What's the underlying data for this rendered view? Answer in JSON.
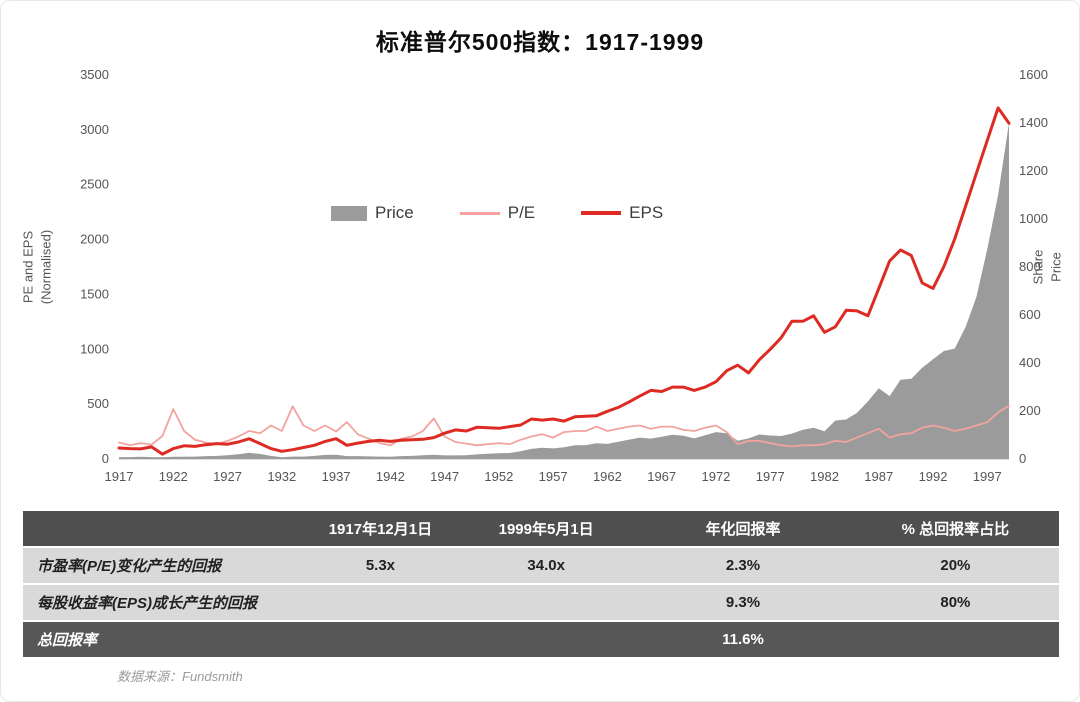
{
  "title": "标准普尔500指数：1917-1999",
  "footer": {
    "source": "数据来源：Fundsmith"
  },
  "colors": {
    "price_area": "#9b9b9b",
    "pe_line": "#f2a39e",
    "eps_line": "#dd2a22",
    "table_header_bg": "#4f4f4f",
    "table_row_bg": "#d9d9d9",
    "table_total_bg": "#575757",
    "highlight_red": "#d62222"
  },
  "chart_data": {
    "type": "area",
    "title": "标准普尔500指数：1917-1999",
    "left_axis": {
      "label": "PE and EPS\n(Normalised)",
      "min": 0,
      "max": 3500,
      "ticks": [
        0,
        500,
        1000,
        1500,
        2000,
        2500,
        3000,
        3500
      ]
    },
    "right_axis": {
      "label": "Share Price",
      "min": 0,
      "max": 1600,
      "ticks": [
        0,
        200,
        400,
        600,
        800,
        1000,
        1200,
        1400,
        1600
      ]
    },
    "x_ticks": [
      1917,
      1922,
      1927,
      1932,
      1937,
      1942,
      1947,
      1952,
      1957,
      1962,
      1967,
      1972,
      1977,
      1982,
      1987,
      1992,
      1997
    ],
    "x": [
      1917,
      1918,
      1919,
      1920,
      1921,
      1922,
      1923,
      1924,
      1925,
      1926,
      1927,
      1928,
      1929,
      1930,
      1931,
      1932,
      1933,
      1934,
      1935,
      1936,
      1937,
      1938,
      1939,
      1940,
      1941,
      1942,
      1943,
      1944,
      1945,
      1946,
      1947,
      1948,
      1949,
      1950,
      1951,
      1952,
      1953,
      1954,
      1955,
      1956,
      1957,
      1958,
      1959,
      1960,
      1961,
      1962,
      1963,
      1964,
      1965,
      1966,
      1967,
      1968,
      1969,
      1970,
      1971,
      1972,
      1973,
      1974,
      1975,
      1976,
      1977,
      1978,
      1979,
      1980,
      1981,
      1982,
      1983,
      1984,
      1985,
      1986,
      1987,
      1988,
      1989,
      1990,
      1991,
      1992,
      1993,
      1994,
      1995,
      1996,
      1997,
      1998,
      1999
    ],
    "legend": [
      "Price",
      "P/E",
      "EPS"
    ],
    "series": [
      {
        "name": "Price",
        "type": "area",
        "axis": "right",
        "color": "#9b9b9b",
        "values": [
          8,
          8,
          9,
          8,
          7,
          9,
          9,
          10,
          12,
          13,
          16,
          20,
          26,
          21,
          13,
          7,
          10,
          10,
          13,
          17,
          18,
          12,
          12,
          11,
          10,
          9,
          12,
          13,
          16,
          18,
          15,
          15,
          16,
          19,
          22,
          24,
          25,
          32,
          42,
          47,
          44,
          49,
          57,
          58,
          66,
          63,
          72,
          81,
          89,
          85,
          93,
          101,
          97,
          86,
          99,
          112,
          107,
          76,
          86,
          102,
          98,
          96,
          106,
          122,
          130,
          116,
          160,
          165,
          192,
          240,
          295,
          262,
          330,
          334,
          380,
          416,
          450,
          460,
          550,
          675,
          875,
          1100,
          1400
        ]
      },
      {
        "name": "P/E",
        "type": "line",
        "axis": "left",
        "color": "#f2a39e",
        "values": [
          150,
          125,
          145,
          130,
          210,
          455,
          255,
          175,
          150,
          135,
          165,
          205,
          255,
          235,
          305,
          255,
          480,
          305,
          255,
          305,
          250,
          335,
          225,
          185,
          145,
          125,
          185,
          205,
          255,
          370,
          205,
          155,
          140,
          125,
          135,
          145,
          135,
          175,
          205,
          225,
          195,
          245,
          255,
          255,
          295,
          255,
          275,
          295,
          305,
          275,
          295,
          295,
          265,
          255,
          285,
          305,
          245,
          135,
          165,
          165,
          145,
          125,
          115,
          125,
          125,
          135,
          165,
          155,
          195,
          235,
          275,
          195,
          225,
          235,
          285,
          305,
          285,
          255,
          275,
          305,
          335,
          425,
          485
        ]
      },
      {
        "name": "EPS",
        "type": "line",
        "axis": "left",
        "color": "#dd2a22",
        "values": [
          100,
          95,
          92,
          110,
          45,
          95,
          120,
          115,
          130,
          140,
          135,
          155,
          185,
          140,
          95,
          70,
          85,
          105,
          125,
          160,
          185,
          125,
          145,
          160,
          170,
          160,
          170,
          175,
          180,
          195,
          235,
          265,
          255,
          290,
          285,
          280,
          295,
          310,
          365,
          355,
          365,
          345,
          385,
          390,
          395,
          435,
          470,
          520,
          575,
          625,
          615,
          655,
          655,
          625,
          655,
          705,
          805,
          855,
          785,
          905,
          1000,
          1105,
          1255,
          1255,
          1305,
          1155,
          1205,
          1355,
          1350,
          1305,
          1555,
          1805,
          1905,
          1855,
          1605,
          1555,
          1755,
          2005,
          2305,
          2605,
          2905,
          3200,
          3060
        ]
      }
    ]
  },
  "table": {
    "headers": [
      "",
      "1917年12月1日",
      "1999年5月1日",
      "年化回报率",
      "% 总回报率占比"
    ],
    "rows": [
      {
        "cells": [
          "市盈率(P/E)变化产生的回报",
          "5.3x",
          "34.0x",
          "2.3%",
          "20%"
        ],
        "variant": "light",
        "red_cell_index": 3
      },
      {
        "cells": [
          "每股收益率(EPS)成长产生的回报",
          "",
          "",
          "9.3%",
          "80%"
        ],
        "variant": "light"
      },
      {
        "cells": [
          "总回报率",
          "",
          "",
          "11.6%",
          ""
        ],
        "variant": "dark"
      }
    ]
  }
}
